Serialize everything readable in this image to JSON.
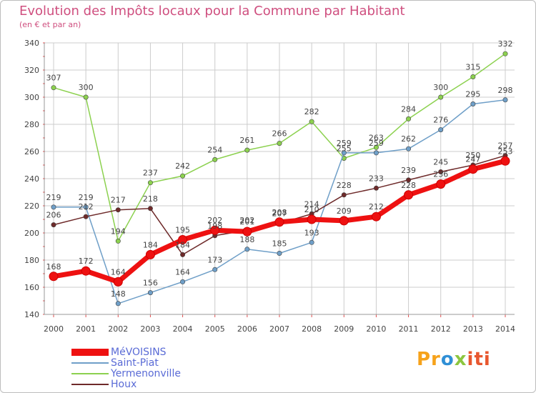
{
  "chart_data": {
    "type": "line",
    "title": "Evolution des Impôts locaux pour la Commune par Habitant",
    "subtitle": "(en € et par an)",
    "xlabel": "",
    "ylabel": "",
    "ylim": [
      140,
      340
    ],
    "yticks": [
      "140",
      "160",
      "180",
      "200",
      "220",
      "240",
      "260",
      "280",
      "300",
      "320",
      "340"
    ],
    "categories": [
      "2000",
      "2001",
      "2002",
      "2003",
      "2004",
      "2005",
      "2006",
      "2007",
      "2008",
      "2009",
      "2010",
      "2011",
      "2012",
      "2013",
      "2014"
    ],
    "series": [
      {
        "name": "Yermenonville",
        "color": "#8cd14f",
        "values": [
          307,
          300,
          194,
          237,
          242,
          254,
          261,
          266,
          282,
          255,
          263,
          284,
          300,
          315,
          332
        ],
        "labels": [
          "307",
          "300",
          "194",
          "237",
          "242",
          "254",
          "261",
          "266",
          "282",
          "255",
          "263",
          "284",
          "300",
          "315",
          "332"
        ]
      },
      {
        "name": "Saint-Piat",
        "color": "#6f9fc8",
        "values": [
          219,
          219,
          148,
          156,
          164,
          173,
          188,
          185,
          193,
          259,
          259,
          262,
          276,
          295,
          298
        ],
        "labels": [
          "219",
          "219",
          "148",
          "156",
          "164",
          "173",
          "188",
          "185",
          "193",
          "259",
          "259",
          "262",
          "276",
          "295",
          "298"
        ]
      },
      {
        "name": "Houx",
        "color": "#6e2a2a",
        "values": [
          206,
          212,
          217,
          218,
          184,
          198,
          202,
          207,
          214,
          228,
          233,
          239,
          245,
          250,
          257
        ],
        "labels": [
          "206",
          "212",
          "217",
          "218",
          "184",
          "198",
          "202",
          "207",
          "214",
          "228",
          "233",
          "239",
          "245",
          "250",
          "257"
        ]
      },
      {
        "name": "MéVOISINS",
        "color": "#ee1111",
        "values": [
          168,
          172,
          164,
          184,
          195,
          202,
          201,
          208,
          210,
          209,
          212,
          228,
          236,
          247,
          253
        ],
        "labels": [
          "168",
          "172",
          "164",
          "184",
          "195",
          "202",
          "201",
          "208",
          "210",
          "209",
          "212",
          "228",
          "236",
          "247",
          "253"
        ]
      }
    ]
  },
  "legend": {
    "items": [
      {
        "name": "MéVOISINS",
        "color": "#ee1111"
      },
      {
        "name": "Saint-Piat",
        "color": "#6f9fc8"
      },
      {
        "name": "Yermenonville",
        "color": "#8cd14f"
      },
      {
        "name": "Houx",
        "color": "#6e2a2a"
      }
    ]
  },
  "brand": {
    "part1": "Pr",
    "part2": "o",
    "part3": "x",
    "part4": "iti"
  }
}
